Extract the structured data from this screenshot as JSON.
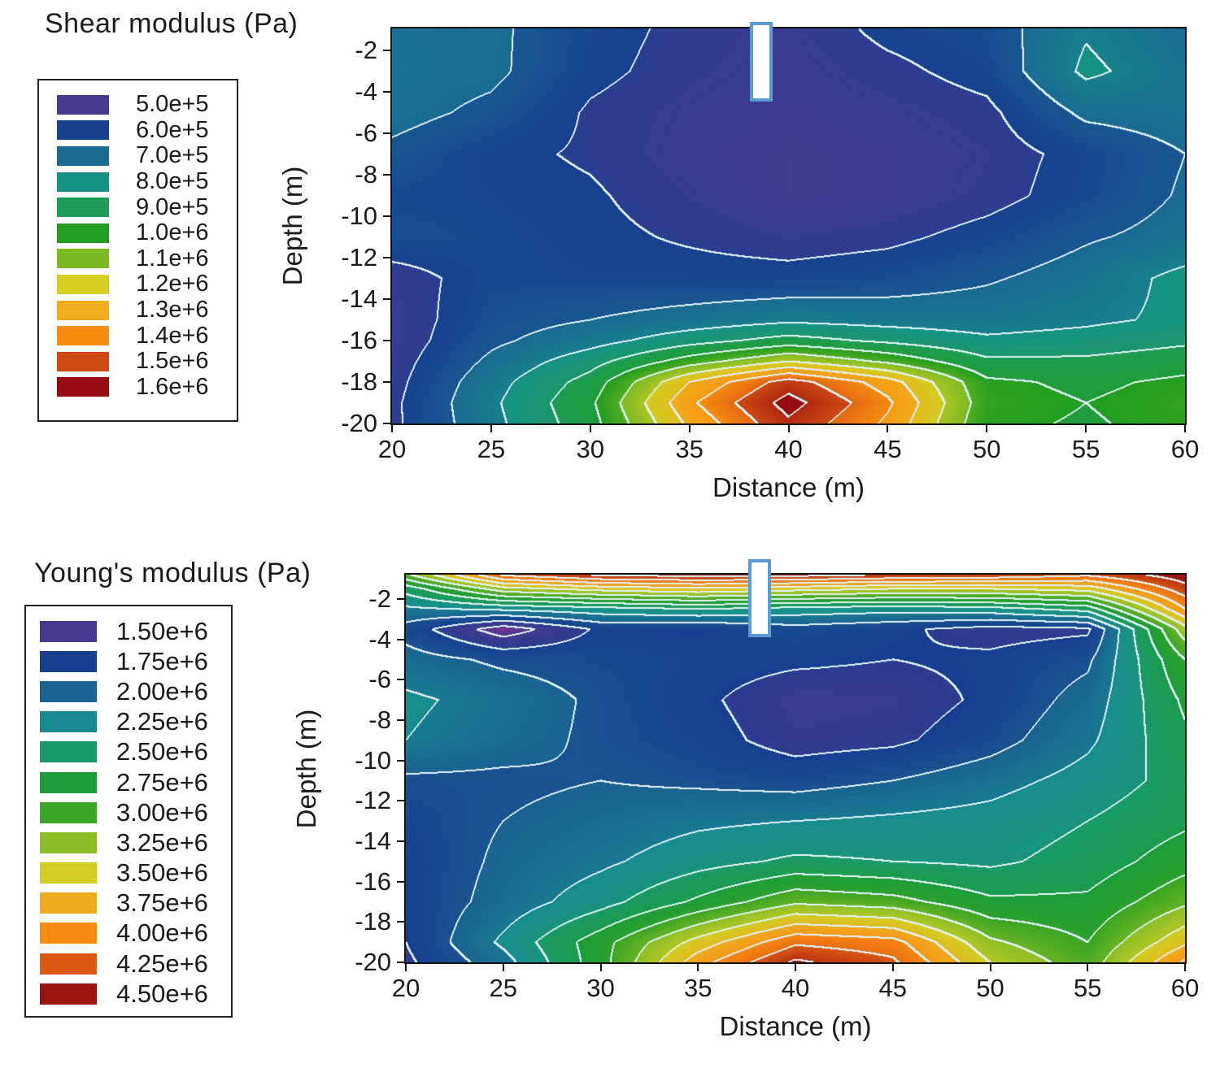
{
  "chart_data": [
    {
      "type": "filled-contour",
      "title": "Shear modulus (Pa)",
      "xlabel": "Distance (m)",
      "ylabel": "Depth (m)",
      "x_ticks": [
        20,
        25,
        30,
        35,
        40,
        45,
        50,
        55,
        60
      ],
      "y_ticks": [
        -2,
        -4,
        -6,
        -8,
        -10,
        -12,
        -14,
        -16,
        -18,
        -20
      ],
      "x_range": [
        20,
        60
      ],
      "depth_range": [
        -0.94,
        -20
      ],
      "legend": [
        {
          "label": "5.0e+5",
          "color": "#46398f"
        },
        {
          "label": "6.0e+5",
          "color": "#16418f"
        },
        {
          "label": "7.0e+5",
          "color": "#1a6a94"
        },
        {
          "label": "8.0e+5",
          "color": "#169184"
        },
        {
          "label": "9.0e+5",
          "color": "#1f9b57"
        },
        {
          "label": "1.0e+6",
          "color": "#219d21"
        },
        {
          "label": "1.1e+6",
          "color": "#7cba24"
        },
        {
          "label": "1.2e+6",
          "color": "#d4ce22"
        },
        {
          "label": "1.3e+6",
          "color": "#f0ac1c"
        },
        {
          "label": "1.4e+6",
          "color": "#f98c10"
        },
        {
          "label": "1.5e+6",
          "color": "#cd4a13"
        },
        {
          "label": "1.6e+6",
          "color": "#970c10"
        }
      ],
      "contour_line_color": "#e0f2f6",
      "marker": {
        "border_color": "#5b9bd5",
        "fill_color": "#ffffff"
      },
      "grid": {
        "unit_scale": 100000,
        "x": [
          20,
          25,
          30,
          35,
          40,
          45,
          50,
          55,
          60
        ],
        "depth": [
          -1,
          -3,
          -5,
          -7,
          -9,
          -11,
          -13,
          -15,
          -16,
          -17,
          -18,
          -19,
          -20
        ],
        "values": [
          [
            7.3,
            7.2,
            6.3,
            5.8,
            5.5,
            6.2,
            6.5,
            7.9,
            7.1
          ],
          [
            7.4,
            7.2,
            6.2,
            5.7,
            5.4,
            5.8,
            6.3,
            8.2,
            7.4
          ],
          [
            7.3,
            6.8,
            5.9,
            5.5,
            5.3,
            5.5,
            5.8,
            7.2,
            7.4
          ],
          [
            6.8,
            6.2,
            5.9,
            5.4,
            5.2,
            5.3,
            5.6,
            6.3,
            7.0
          ],
          [
            6.4,
            6.3,
            6.1,
            5.6,
            5.2,
            5.3,
            5.7,
            6.4,
            7.1
          ],
          [
            6.6,
            6.4,
            6.2,
            5.9,
            5.6,
            5.8,
            6.3,
            6.9,
            7.3
          ],
          [
            5.6,
            6.4,
            6.3,
            6.3,
            6.3,
            6.5,
            6.9,
            7.4,
            8.3
          ],
          [
            5.5,
            6.6,
            7.0,
            7.4,
            7.8,
            7.6,
            7.5,
            7.8,
            8.2
          ],
          [
            5.5,
            6.8,
            7.6,
            8.6,
            9.4,
            8.8,
            8.2,
            8.4,
            8.8
          ],
          [
            5.6,
            7.2,
            8.6,
            10.5,
            12.0,
            10.8,
            9.2,
            9.2,
            9.6
          ],
          [
            5.7,
            7.6,
            9.4,
            13.0,
            15.5,
            13.5,
            10.2,
            9.8,
            10.2
          ],
          [
            5.8,
            7.8,
            9.8,
            13.8,
            16.4,
            14.2,
            10.4,
            10.0,
            10.4
          ],
          [
            5.8,
            7.7,
            9.6,
            13.2,
            15.8,
            13.8,
            10.2,
            9.9,
            10.3
          ]
        ]
      }
    },
    {
      "type": "filled-contour",
      "title": "Young's modulus (Pa)",
      "xlabel": "Distance (m)",
      "ylabel": "Depth (m)",
      "x_ticks": [
        20,
        25,
        30,
        35,
        40,
        45,
        50,
        55,
        60
      ],
      "y_ticks": [
        -2,
        -4,
        -6,
        -8,
        -10,
        -12,
        -14,
        -16,
        -18,
        -20
      ],
      "x_range": [
        20,
        60
      ],
      "depth_range": [
        -0.8,
        -20
      ],
      "legend": [
        {
          "label": "1.50e+6",
          "color": "#46398f"
        },
        {
          "label": "1.75e+6",
          "color": "#163f8f"
        },
        {
          "label": "2.00e+6",
          "color": "#1a6392"
        },
        {
          "label": "2.25e+6",
          "color": "#178c90"
        },
        {
          "label": "2.50e+6",
          "color": "#1a9a68"
        },
        {
          "label": "2.75e+6",
          "color": "#1d9c38"
        },
        {
          "label": "3.00e+6",
          "color": "#3ba525"
        },
        {
          "label": "3.25e+6",
          "color": "#8cbe26"
        },
        {
          "label": "3.50e+6",
          "color": "#d2ce24"
        },
        {
          "label": "3.75e+6",
          "color": "#eeab20"
        },
        {
          "label": "4.00e+6",
          "color": "#f98a12"
        },
        {
          "label": "4.25e+6",
          "color": "#d95913"
        },
        {
          "label": "4.50e+6",
          "color": "#9a1410"
        }
      ],
      "below_color": "#a0309a",
      "contour_line_color": "#e0f2f6",
      "marker": {
        "border_color": "#5b9bd5",
        "fill_color": "#ffffff"
      },
      "grid": {
        "unit_scale": 1000000,
        "x": [
          20,
          25,
          30,
          35,
          40,
          45,
          50,
          55,
          60
        ],
        "depth": [
          -0.8,
          -1.5,
          -2.5,
          -3.5,
          -5,
          -7,
          -9,
          -11,
          -13,
          -15,
          -17,
          -19,
          -20
        ],
        "values": [
          [
            3.2,
            4.3,
            4.55,
            4.6,
            4.6,
            4.5,
            4.45,
            4.3,
            4.65
          ],
          [
            2.6,
            3.4,
            3.6,
            3.7,
            3.6,
            3.5,
            3.5,
            3.6,
            4.4
          ],
          [
            2.2,
            2.3,
            2.4,
            2.5,
            2.4,
            2.35,
            2.4,
            2.6,
            4.0
          ],
          [
            1.9,
            1.35,
            1.8,
            1.75,
            1.9,
            1.8,
            1.65,
            1.7,
            3.4
          ],
          [
            2.1,
            1.95,
            1.9,
            1.85,
            1.8,
            1.75,
            1.8,
            1.95,
            3.0
          ],
          [
            2.3,
            2.15,
            1.95,
            1.8,
            1.6,
            1.62,
            1.8,
            2.1,
            2.8
          ],
          [
            2.25,
            2.1,
            1.95,
            1.85,
            1.65,
            1.7,
            1.9,
            2.2,
            2.7
          ],
          [
            1.95,
            1.95,
            2.0,
            1.95,
            1.9,
            2.0,
            2.15,
            2.35,
            2.6
          ],
          [
            1.85,
            2.0,
            2.1,
            2.2,
            2.25,
            2.3,
            2.35,
            2.5,
            2.7
          ],
          [
            1.8,
            2.05,
            2.2,
            2.4,
            2.55,
            2.5,
            2.45,
            2.6,
            2.9
          ],
          [
            1.8,
            2.1,
            2.4,
            2.8,
            3.2,
            3.1,
            2.8,
            2.8,
            3.2
          ],
          [
            1.75,
            2.3,
            2.9,
            3.6,
            4.2,
            4.1,
            3.3,
            3.0,
            3.7
          ],
          [
            1.7,
            2.15,
            2.9,
            3.9,
            4.55,
            4.3,
            3.5,
            3.1,
            4.05
          ]
        ]
      }
    }
  ]
}
